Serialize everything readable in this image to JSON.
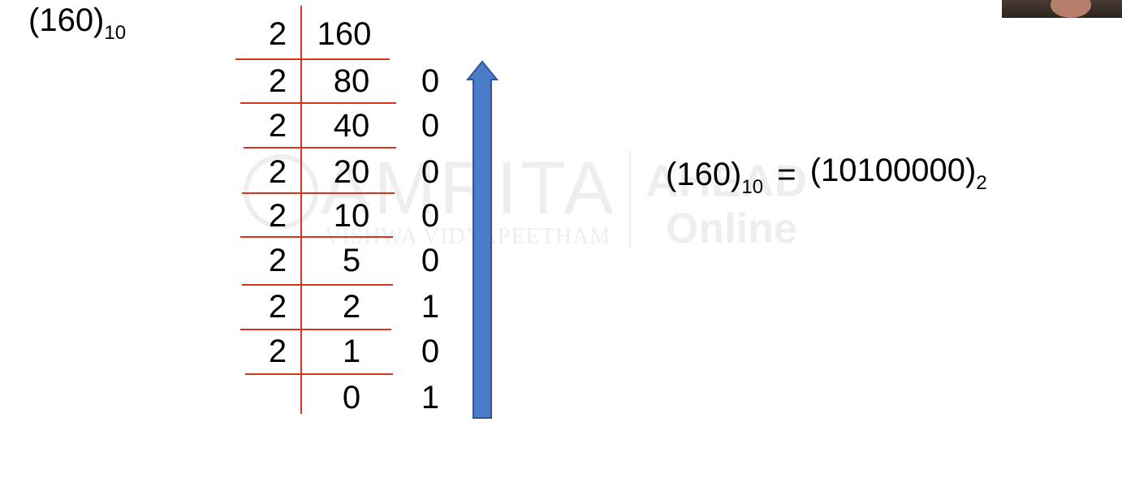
{
  "title": {
    "number": "(160)",
    "base": "10"
  },
  "division_table": {
    "divisor": "2",
    "first_dividend": "160",
    "steps": [
      {
        "divisor": "2",
        "quotient": "80",
        "remainder": "0"
      },
      {
        "divisor": "2",
        "quotient": "40",
        "remainder": "0"
      },
      {
        "divisor": "2",
        "quotient": "20",
        "remainder": "0"
      },
      {
        "divisor": "2",
        "quotient": "10",
        "remainder": "0"
      },
      {
        "divisor": "2",
        "quotient": "5",
        "remainder": "0"
      },
      {
        "divisor": "2",
        "quotient": "2",
        "remainder": "1"
      },
      {
        "divisor": "2",
        "quotient": "1",
        "remainder": "0"
      },
      {
        "divisor": "",
        "quotient": "0",
        "remainder": "1"
      }
    ]
  },
  "result": {
    "lhs_number": "(160)",
    "lhs_base": "10",
    "equals": "=",
    "rhs_number": "(10100000)",
    "rhs_base": "2"
  },
  "watermark": {
    "brand": "AMRITA",
    "subtitle": "VISHWA VIDYAPEETHAM",
    "right_top": "AHEAD",
    "right_bottom": "Online"
  },
  "colors": {
    "line_red": "#d9341c",
    "arrow_blue": "#4a7cc8",
    "arrow_outline": "#2f5597"
  }
}
